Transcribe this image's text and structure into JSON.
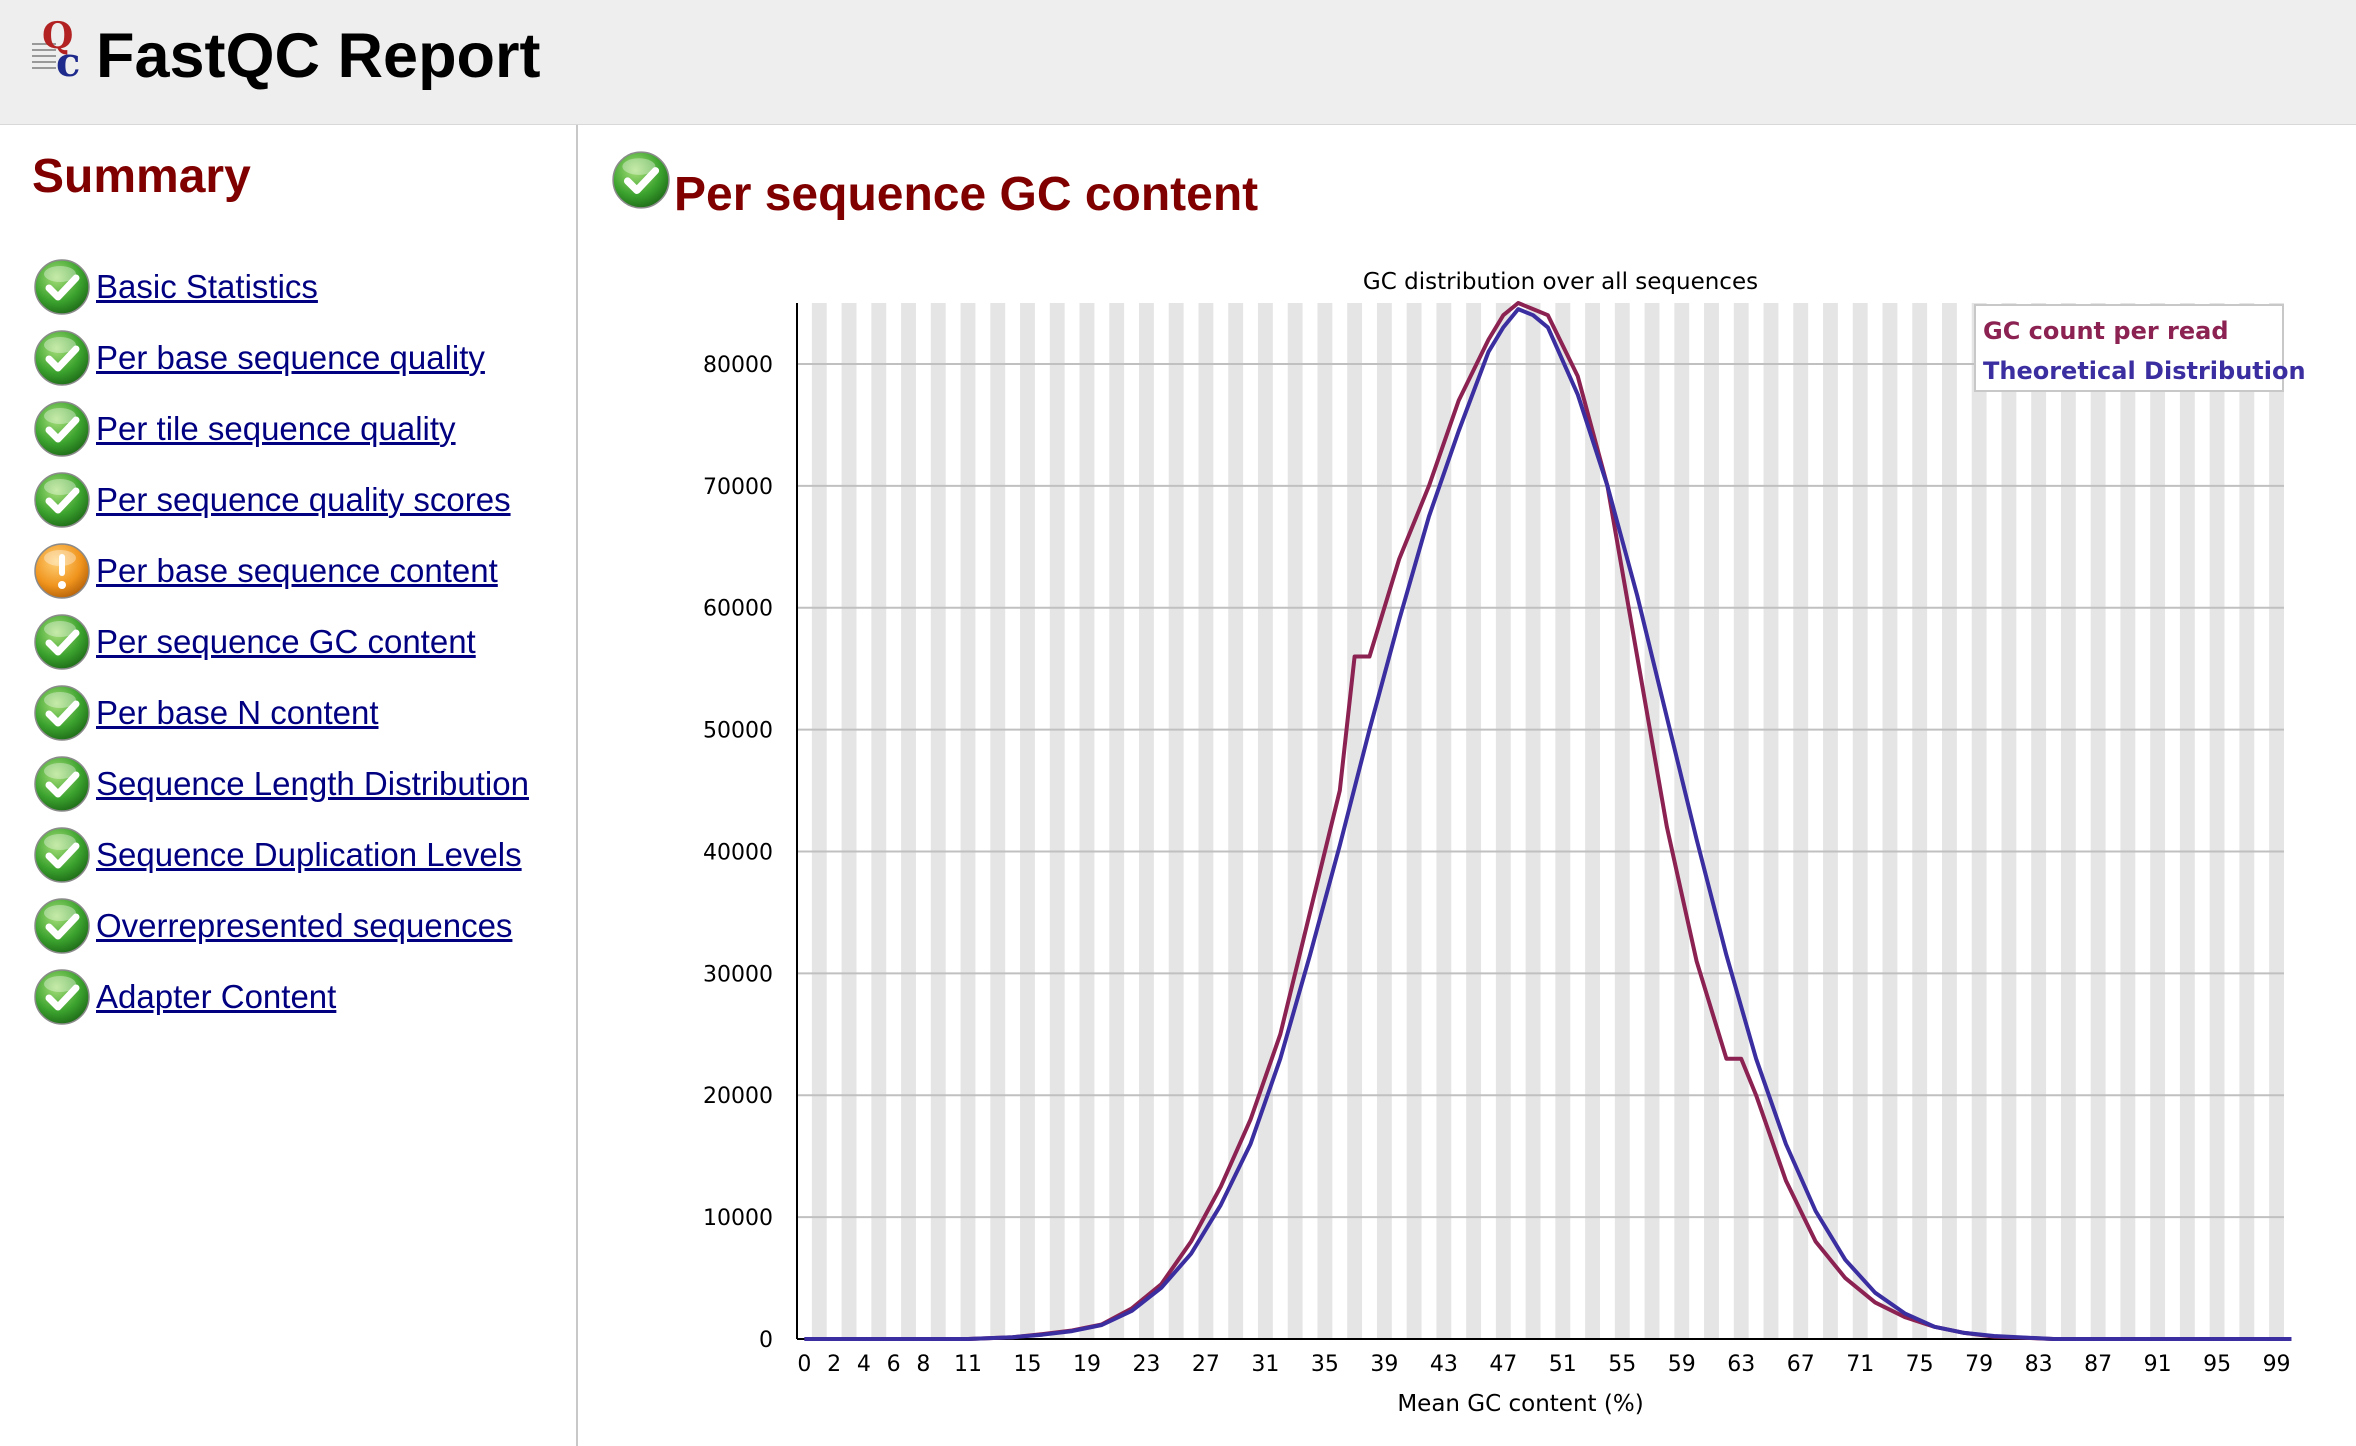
{
  "app": {
    "title": "FastQC Report"
  },
  "colors": {
    "header_bg": "#eeeeee",
    "section_title": "#800000",
    "link": "#000080",
    "pass": "#3ba22e",
    "warn": "#f0941d"
  },
  "sidebar": {
    "title": "Summary",
    "items": [
      {
        "label": "Basic Statistics",
        "status": "pass",
        "icon": "pass-icon"
      },
      {
        "label": "Per base sequence quality",
        "status": "pass",
        "icon": "pass-icon"
      },
      {
        "label": "Per tile sequence quality",
        "status": "pass",
        "icon": "pass-icon"
      },
      {
        "label": "Per sequence quality scores",
        "status": "pass",
        "icon": "pass-icon"
      },
      {
        "label": "Per base sequence content",
        "status": "warn",
        "icon": "warn-icon"
      },
      {
        "label": "Per sequence GC content",
        "status": "pass",
        "icon": "pass-icon"
      },
      {
        "label": "Per base N content",
        "status": "pass",
        "icon": "pass-icon"
      },
      {
        "label": "Sequence Length Distribution",
        "status": "pass",
        "icon": "pass-icon"
      },
      {
        "label": "Sequence Duplication Levels",
        "status": "pass",
        "icon": "pass-icon"
      },
      {
        "label": "Overrepresented sequences",
        "status": "pass",
        "icon": "pass-icon"
      },
      {
        "label": "Adapter Content",
        "status": "pass",
        "icon": "pass-icon"
      }
    ]
  },
  "main": {
    "title": "Per sequence GC content",
    "status": "pass",
    "icon": "pass-icon"
  },
  "chart_data": {
    "type": "line",
    "title": "GC distribution over all sequences",
    "xlabel": "Mean GC content (%)",
    "ylabel": "",
    "xlim": [
      0,
      100
    ],
    "ylim": [
      0,
      85000
    ],
    "yticks": [
      0,
      10000,
      20000,
      30000,
      40000,
      50000,
      60000,
      70000,
      80000
    ],
    "xticks": [
      "0",
      "2",
      "4",
      "6",
      "8",
      "11",
      "15",
      "19",
      "23",
      "27",
      "31",
      "35",
      "39",
      "43",
      "47",
      "51",
      "55",
      "59",
      "63",
      "67",
      "71",
      "75",
      "79",
      "83",
      "87",
      "91",
      "95",
      "99"
    ],
    "grid": true,
    "legend_position": "top-right",
    "series": [
      {
        "name": "GC count per read",
        "color": "#8b2252",
        "x": [
          0,
          11,
          14,
          16,
          18,
          20,
          22,
          24,
          26,
          28,
          30,
          32,
          34,
          36,
          37,
          38,
          40,
          42,
          44,
          46,
          47,
          48,
          49,
          50,
          52,
          54,
          56,
          58,
          60,
          62,
          63,
          64,
          66,
          68,
          70,
          72,
          74,
          76,
          78,
          80,
          84,
          100
        ],
        "y": [
          0,
          0,
          150,
          400,
          700,
          1200,
          2500,
          4500,
          8000,
          12500,
          18000,
          25000,
          35000,
          45000,
          56000,
          56000,
          64000,
          70000,
          77000,
          82000,
          84000,
          85000,
          84500,
          84000,
          79000,
          70000,
          56000,
          42000,
          31000,
          23000,
          23000,
          20000,
          13000,
          8000,
          5000,
          3000,
          1800,
          1000,
          500,
          200,
          0,
          0
        ]
      },
      {
        "name": "Theoretical Distribution",
        "color": "#3a2ea0",
        "x": [
          0,
          11,
          14,
          16,
          18,
          20,
          22,
          24,
          26,
          28,
          30,
          32,
          34,
          36,
          38,
          40,
          42,
          44,
          46,
          47,
          48,
          49,
          50,
          52,
          54,
          56,
          58,
          60,
          62,
          64,
          66,
          68,
          70,
          72,
          74,
          76,
          78,
          80,
          84,
          100
        ],
        "y": [
          0,
          0,
          150,
          350,
          650,
          1150,
          2300,
          4200,
          7000,
          11000,
          16000,
          23000,
          31500,
          40500,
          50000,
          59000,
          67500,
          74500,
          81000,
          83000,
          84500,
          84000,
          83000,
          77500,
          70000,
          61000,
          51000,
          41000,
          31500,
          23000,
          16000,
          10500,
          6500,
          3800,
          2100,
          1000,
          500,
          250,
          0,
          0
        ]
      }
    ]
  }
}
